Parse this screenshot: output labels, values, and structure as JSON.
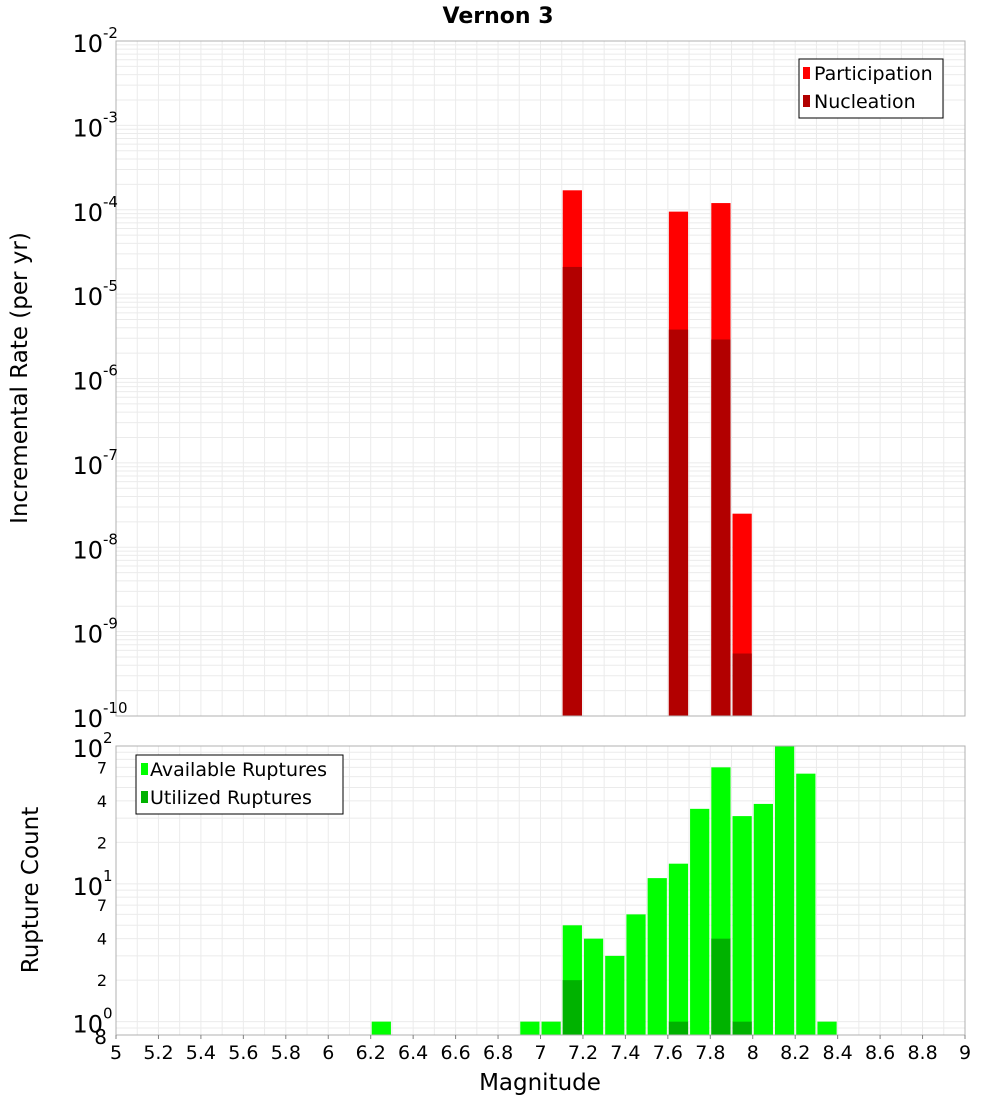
{
  "chart_data": [
    {
      "type": "bar",
      "title": "Vernon 3",
      "xlabel": "",
      "ylabel": "Incremental Rate (per yr)",
      "yscale": "log",
      "ylim": [
        1e-10,
        0.01
      ],
      "xlim": [
        5,
        9
      ],
      "bar_width": 0.1,
      "y_ticks": [
        {
          "mantissa": "10",
          "exponent": "-2"
        },
        {
          "mantissa": "10",
          "exponent": "-3"
        },
        {
          "mantissa": "10",
          "exponent": "-4"
        },
        {
          "mantissa": "10",
          "exponent": "-5"
        },
        {
          "mantissa": "10",
          "exponent": "-6"
        },
        {
          "mantissa": "10",
          "exponent": "-7"
        },
        {
          "mantissa": "10",
          "exponent": "-8"
        },
        {
          "mantissa": "10",
          "exponent": "-9"
        },
        {
          "mantissa": "10",
          "exponent": "-10"
        }
      ],
      "legend_position": "top-right",
      "series": [
        {
          "name": "Participation",
          "color": "#ff0000",
          "x": [
            7.15,
            7.65,
            7.85,
            7.95
          ],
          "values": [
            0.00017,
            9.5e-05,
            0.00012,
            2.5e-08
          ]
        },
        {
          "name": "Nucleation",
          "color": "#b20000",
          "x": [
            7.15,
            7.65,
            7.85,
            7.95
          ],
          "values": [
            2.1e-05,
            3.8e-06,
            2.9e-06,
            5.5e-10
          ]
        }
      ]
    },
    {
      "type": "bar",
      "title": "",
      "xlabel": "Magnitude",
      "ylabel": "Rupture Count",
      "yscale": "log",
      "ylim": [
        0.8,
        100
      ],
      "xlim": [
        5,
        9
      ],
      "bar_width": 0.1,
      "x_tick_labels": [
        "5",
        "5.2",
        "5.4",
        "5.6",
        "5.8",
        "6",
        "6.2",
        "6.4",
        "6.6",
        "6.8",
        "7",
        "7.2",
        "7.4",
        "7.6",
        "7.8",
        "8",
        "8.2",
        "8.4",
        "8.6",
        "8.8",
        "9"
      ],
      "y_major_ticks": [
        {
          "mantissa": "10",
          "exponent": "2"
        },
        {
          "mantissa": "10",
          "exponent": "1"
        },
        {
          "mantissa": "10",
          "exponent": "0"
        }
      ],
      "y_minor_tick_labels": [
        "7",
        "4",
        "2",
        "7",
        "4",
        "2",
        "8"
      ],
      "legend_position": "top-left",
      "series": [
        {
          "name": "Available Ruptures",
          "color": "#00ff00",
          "x": [
            6.25,
            6.95,
            7.05,
            7.15,
            7.25,
            7.35,
            7.45,
            7.55,
            7.65,
            7.75,
            7.85,
            7.95,
            8.05,
            8.15,
            8.25,
            8.35
          ],
          "values": [
            1,
            1,
            1,
            5,
            4,
            3,
            6,
            11,
            14,
            35,
            70,
            31,
            38,
            100,
            63,
            1
          ]
        },
        {
          "name": "Utilized Ruptures",
          "color": "#00b200",
          "x": [
            7.15,
            7.65,
            7.85,
            7.95
          ],
          "values": [
            2,
            1,
            4,
            1
          ]
        }
      ]
    }
  ]
}
